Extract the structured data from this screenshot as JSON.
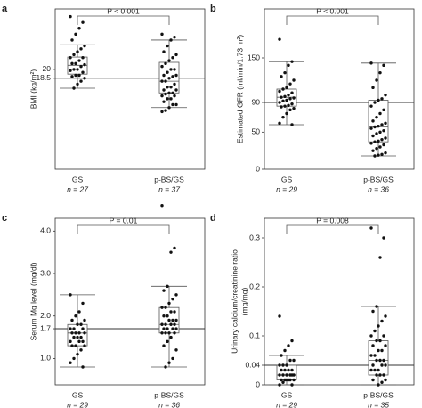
{
  "chart_data": [
    {
      "type": "box",
      "label": "a",
      "ylabel": [
        "BMI (kg/m²)"
      ],
      "annotation": "P < 0.001",
      "categories": [
        "GS",
        "p-BS/GS"
      ],
      "n_labels": [
        "n = 27",
        "n = 37"
      ],
      "ylim": [
        3,
        30.3
      ],
      "yticks": [
        18.5,
        20
      ],
      "reference": 18.5,
      "boxes": [
        {
          "whisker_low": 16.8,
          "q1": 19.2,
          "median": 20.7,
          "q3": 22.1,
          "whisker_high": 24.2,
          "points": [
            29,
            28,
            27,
            26,
            25,
            24,
            23.5,
            23,
            22.5,
            22,
            22,
            21.5,
            21,
            21,
            20.8,
            20.5,
            20,
            20,
            19.8,
            19.5,
            19,
            19,
            18.8,
            18.5,
            18,
            17.5,
            16.8
          ]
        },
        {
          "whisker_low": 13.5,
          "q1": 16,
          "median": 18,
          "q3": 21.2,
          "whisker_high": 25,
          "points": [
            26,
            25.5,
            25,
            24,
            23,
            22.5,
            22,
            21.5,
            21,
            20.5,
            20,
            20,
            19.5,
            19,
            19,
            18.8,
            18.5,
            18,
            18,
            17.5,
            17,
            17,
            16.5,
            16.5,
            16,
            16,
            15.8,
            15.5,
            15.5,
            15,
            15,
            14.5,
            14,
            14,
            13.5,
            13,
            12.8
          ]
        }
      ]
    },
    {
      "type": "box",
      "label": "b",
      "ylabel": [
        "Estimated GFR (ml/min/1.73 m²)"
      ],
      "annotation": "P < 0.001",
      "categories": [
        "GS",
        "p-BS/GS"
      ],
      "n_labels": [
        "n = 29",
        "n = 36"
      ],
      "ylim": [
        0,
        216
      ],
      "yticks": [
        0,
        50,
        90,
        150
      ],
      "reference": 90,
      "boxes": [
        {
          "whisker_low": 60,
          "q1": 85,
          "median": 97,
          "q3": 108,
          "whisker_high": 145,
          "points": [
            175,
            145,
            140,
            130,
            125,
            120,
            115,
            110,
            108,
            105,
            103,
            100,
            98,
            97,
            96,
            95,
            93,
            92,
            90,
            88,
            86,
            85,
            84,
            82,
            80,
            75,
            70,
            62,
            60
          ]
        },
        {
          "whisker_low": 18,
          "q1": 37,
          "median": 57,
          "q3": 93,
          "whisker_high": 143,
          "points": [
            143,
            140,
            130,
            120,
            110,
            100,
            95,
            93,
            90,
            85,
            80,
            75,
            70,
            65,
            62,
            60,
            58,
            57,
            55,
            52,
            50,
            48,
            45,
            42,
            40,
            38,
            37,
            35,
            33,
            30,
            28,
            25,
            22,
            20,
            19,
            18
          ]
        }
      ]
    },
    {
      "type": "box",
      "label": "c",
      "ylabel": [
        "Serum Mg level (mg/dl)"
      ],
      "annotation": "P = 0.01",
      "categories": [
        "GS",
        "p-BS/GS"
      ],
      "n_labels": [
        "n = 29",
        "n = 36"
      ],
      "ylim": [
        0.38,
        4.3
      ],
      "yticks": [
        {
          "value": 1,
          "label": "1.0"
        },
        1.7,
        {
          "value": 2,
          "label": "2.0"
        },
        {
          "value": 3,
          "label": "3.0"
        },
        {
          "value": 4,
          "label": "4.0"
        }
      ],
      "reference": 1.7,
      "boxes": [
        {
          "whisker_low": 0.8,
          "q1": 1.3,
          "median": 1.6,
          "q3": 1.8,
          "whisker_high": 2.5,
          "points": [
            2.5,
            2.3,
            2.1,
            2.0,
            1.9,
            1.9,
            1.8,
            1.8,
            1.7,
            1.7,
            1.7,
            1.6,
            1.6,
            1.6,
            1.6,
            1.5,
            1.5,
            1.5,
            1.4,
            1.4,
            1.4,
            1.3,
            1.3,
            1.3,
            1.2,
            1.1,
            1.0,
            0.9,
            0.8
          ]
        },
        {
          "whisker_low": 0.8,
          "q1": 1.6,
          "median": 1.8,
          "q3": 2.2,
          "whisker_high": 2.7,
          "points": [
            4.6,
            3.6,
            3.5,
            2.7,
            2.6,
            2.5,
            2.4,
            2.3,
            2.2,
            2.2,
            2.1,
            2.1,
            2.0,
            2.0,
            1.9,
            1.9,
            1.9,
            1.8,
            1.8,
            1.8,
            1.8,
            1.7,
            1.7,
            1.7,
            1.7,
            1.6,
            1.6,
            1.6,
            1.6,
            1.5,
            1.4,
            1.3,
            1.2,
            1.0,
            0.9,
            0.8
          ]
        }
      ]
    },
    {
      "type": "box",
      "label": "d",
      "ylabel": [
        "Urinary calcium/creatinine ratio",
        "(mg/mg)"
      ],
      "annotation": "P = 0.008",
      "categories": [
        "GS",
        "p-BS/GS"
      ],
      "n_labels": [
        "n = 29",
        "n = 35"
      ],
      "ylim": [
        0,
        0.34
      ],
      "yticks": [
        0,
        0.04,
        0.1,
        0.2,
        0.3
      ],
      "reference": 0.04,
      "boxes": [
        {
          "whisker_low": 0,
          "q1": 0.01,
          "median": 0.02,
          "q3": 0.04,
          "whisker_high": 0.06,
          "points": [
            0.14,
            0.09,
            0.08,
            0.07,
            0.06,
            0.05,
            0.05,
            0.04,
            0.04,
            0.04,
            0.03,
            0.03,
            0.03,
            0.03,
            0.02,
            0.02,
            0.02,
            0.02,
            0.02,
            0.02,
            0.01,
            0.01,
            0.01,
            0.01,
            0.01,
            0.01,
            0.005,
            0,
            0
          ]
        },
        {
          "whisker_low": 0,
          "q1": 0.02,
          "median": 0.05,
          "q3": 0.09,
          "whisker_high": 0.16,
          "points": [
            0.32,
            0.3,
            0.26,
            0.16,
            0.15,
            0.14,
            0.13,
            0.12,
            0.11,
            0.1,
            0.1,
            0.09,
            0.09,
            0.08,
            0.08,
            0.07,
            0.07,
            0.06,
            0.06,
            0.05,
            0.05,
            0.05,
            0.04,
            0.04,
            0.04,
            0.03,
            0.03,
            0.03,
            0.02,
            0.02,
            0.02,
            0.01,
            0.01,
            0.005,
            0
          ]
        }
      ]
    }
  ]
}
